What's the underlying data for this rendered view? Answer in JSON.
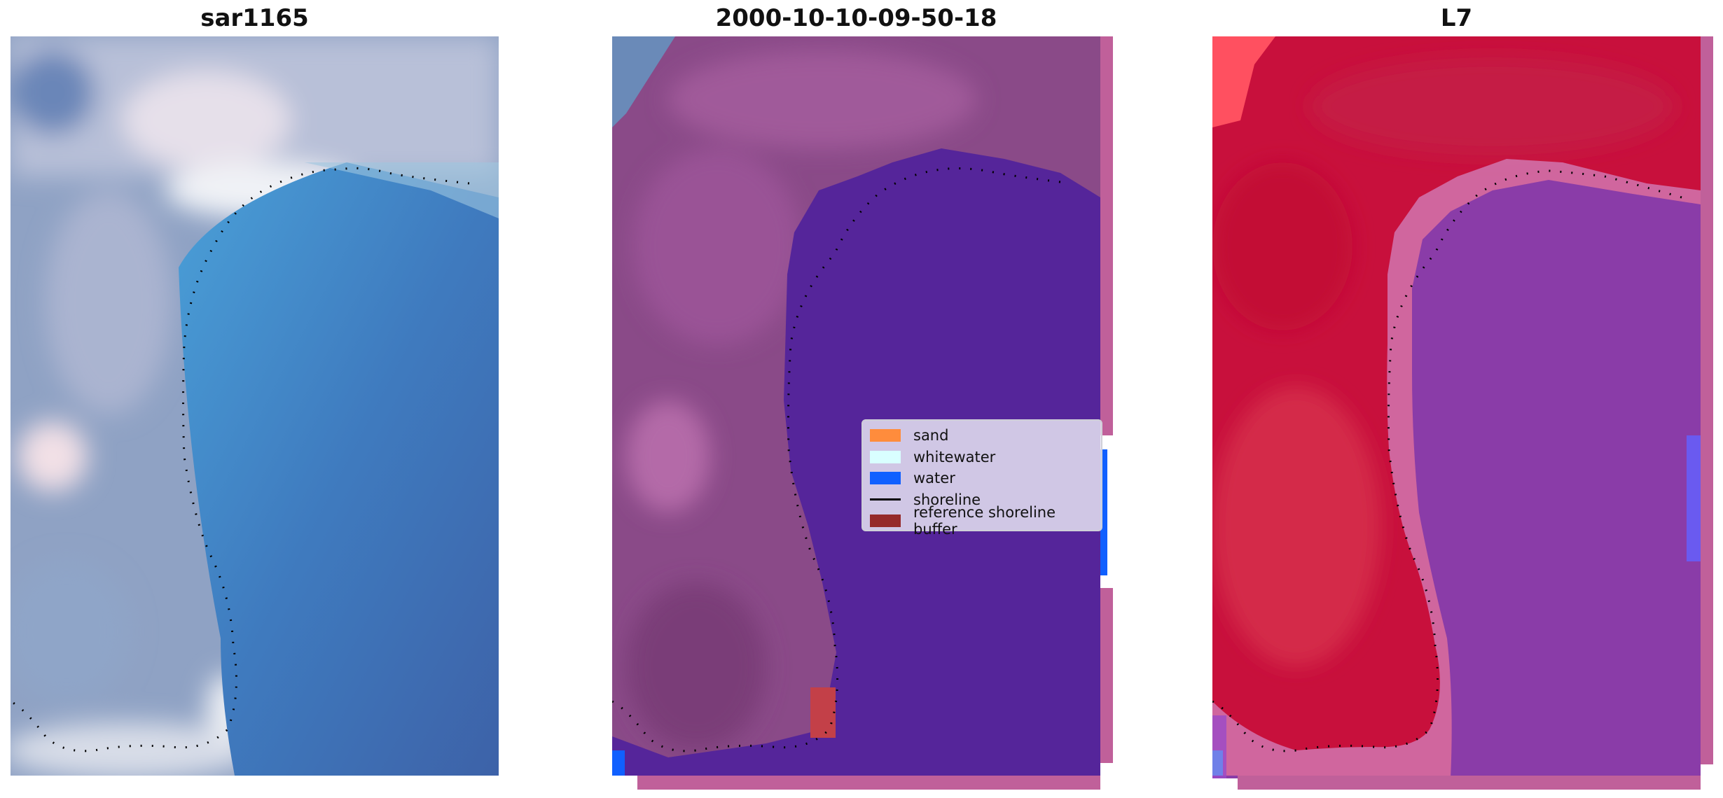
{
  "panels": [
    {
      "title": "sar1165",
      "image": "rgb-satellite-image"
    },
    {
      "title": "2000-10-10-09-50-18",
      "image": "classified-image"
    },
    {
      "title": "L7",
      "image": "false-color-image"
    }
  ],
  "legend": {
    "items": [
      {
        "label": "sand",
        "color": "#ff8c3c"
      },
      {
        "label": "whitewater",
        "color": "#d9ffff"
      },
      {
        "label": "water",
        "color": "#1060ff"
      },
      {
        "label": "shoreline",
        "color": "#000000"
      },
      {
        "label": "reference shoreline buffer",
        "color": "#952a2a"
      }
    ]
  }
}
